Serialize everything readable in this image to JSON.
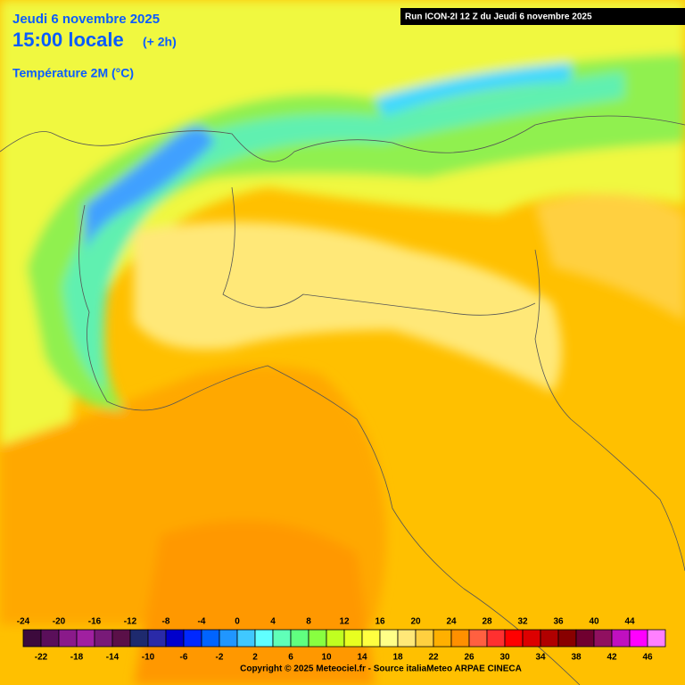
{
  "header": {
    "date": "Jeudi 6 novembre 2025",
    "time": "15:00 locale",
    "offset": "(+ 2h)",
    "parameter": "Température 2M (°C)",
    "run": "Run ICON-2I 12 Z du Jeudi 6 novembre 2025"
  },
  "legend": {
    "values": [
      -24,
      -22,
      -20,
      -18,
      -16,
      -14,
      -12,
      -10,
      -8,
      -6,
      -4,
      -2,
      0,
      2,
      4,
      6,
      8,
      10,
      12,
      14,
      16,
      18,
      20,
      22,
      24,
      26,
      28,
      30,
      32,
      34,
      36,
      38,
      40,
      42,
      44,
      46
    ],
    "colors": [
      "#3c0a3c",
      "#5a0f5a",
      "#8a1a8a",
      "#a020a0",
      "#781a78",
      "#5a1048",
      "#1e2a6e",
      "#2a2aa8",
      "#0000cc",
      "#0028ff",
      "#0064ff",
      "#2096ff",
      "#40c8ff",
      "#60ffff",
      "#60ffb8",
      "#60ff80",
      "#88ff40",
      "#c0ff20",
      "#e8ff20",
      "#ffff40",
      "#ffff88",
      "#ffe878",
      "#ffd040",
      "#ffb000",
      "#ff9000",
      "#ff6040",
      "#ff3030",
      "#ff0000",
      "#dd0000",
      "#b00000",
      "#880000",
      "#700030",
      "#901060",
      "#c010c0",
      "#ff00ff",
      "#ff80ff"
    ]
  },
  "footer": {
    "copyright": "Copyright © 2025 Meteociel.fr - Source italiaMeteo ARPAE CINECA"
  }
}
